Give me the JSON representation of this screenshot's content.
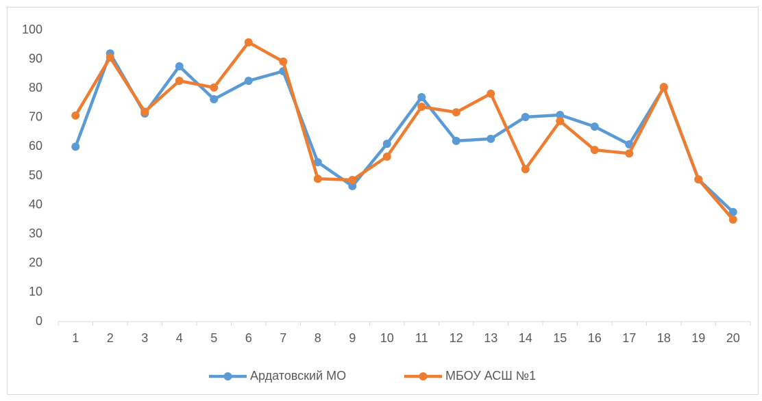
{
  "chart_data": {
    "type": "line",
    "categories": [
      "1",
      "2",
      "3",
      "4",
      "5",
      "6",
      "7",
      "8",
      "9",
      "10",
      "11",
      "12",
      "13",
      "14",
      "15",
      "16",
      "17",
      "18",
      "19",
      "20"
    ],
    "series": [
      {
        "name": "Ардатовский МО",
        "color": "#5b9bd5",
        "values": [
          60,
          92,
          71.4,
          87.6,
          76.3,
          82.6,
          85.9,
          54.7,
          46.5,
          61,
          77,
          62,
          62.7,
          70.2,
          70.9,
          66.9,
          60.8,
          80.3,
          48.8,
          37.6
        ]
      },
      {
        "name": "МБОУ АСШ №1",
        "color": "#ed7d31",
        "values": [
          70.7,
          90.6,
          72,
          82.6,
          80.3,
          95.8,
          89.2,
          49,
          48.6,
          56.6,
          73.7,
          71.8,
          78.2,
          52.3,
          68.8,
          58.9,
          57.7,
          80.5,
          48.8,
          35
        ]
      }
    ],
    "ylim": [
      0,
      100
    ],
    "yticks": [
      0,
      10,
      20,
      30,
      40,
      50,
      60,
      70,
      80,
      90,
      100
    ],
    "grid": false,
    "legend": "bottom"
  }
}
